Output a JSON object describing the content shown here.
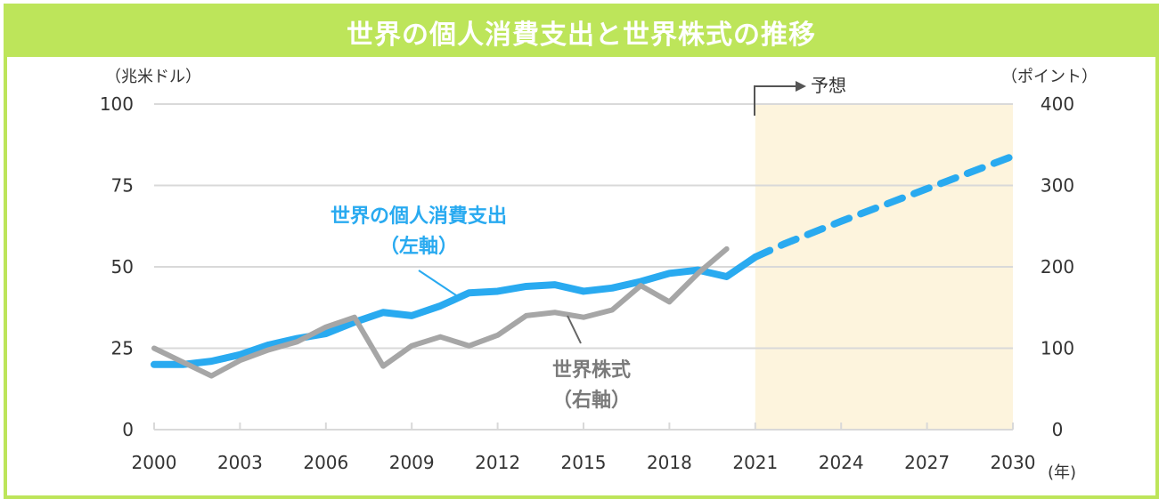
{
  "title": "世界の個人消費支出と世界株式の推移",
  "colors": {
    "frame": "#bde55a",
    "consumption": "#29aaf0",
    "stocks": "#a6a6a6",
    "forecast_bg": "#fdf4dd",
    "grid": "#d9d9d9"
  },
  "chart_data": {
    "type": "line",
    "title": "世界の個人消費支出と世界株式の推移",
    "xlabel": "(年)",
    "ylabel_left": "（兆米ドル）",
    "ylabel_right": "（ポイント）",
    "x_ticks": [
      "2000",
      "2003",
      "2006",
      "2009",
      "2012",
      "2015",
      "2018",
      "2021",
      "2024",
      "2027",
      "2030"
    ],
    "y_left_ticks": [
      "0",
      "25",
      "50",
      "75",
      "100"
    ],
    "y_right_ticks": [
      "0",
      "100",
      "200",
      "300",
      "400"
    ],
    "xlim": [
      2000,
      2030
    ],
    "ylim_left": [
      0,
      100
    ],
    "ylim_right": [
      0,
      400
    ],
    "grid": true,
    "forecast": {
      "label": "予想",
      "from": 2021,
      "to": 2030
    },
    "series": [
      {
        "name": "世界の個人消費支出",
        "axis_label": "（左軸）",
        "axis": "left",
        "x": [
          2000,
          2001,
          2002,
          2003,
          2004,
          2005,
          2006,
          2007,
          2008,
          2009,
          2010,
          2011,
          2012,
          2013,
          2014,
          2015,
          2016,
          2017,
          2018,
          2019,
          2020,
          2021
        ],
        "values": [
          20,
          20,
          21,
          23,
          26,
          28,
          29.5,
          33,
          36,
          35,
          38,
          42,
          42.5,
          44,
          44.5,
          42.5,
          43.5,
          45.5,
          48,
          49,
          47,
          53
        ]
      },
      {
        "name": "世界の個人消費支出（予想）",
        "axis": "left",
        "style": "dashed",
        "x": [
          2021,
          2022,
          2024,
          2027,
          2030
        ],
        "values": [
          53,
          57,
          64,
          74,
          84
        ]
      },
      {
        "name": "世界株式",
        "axis_label": "（右軸）",
        "axis": "right",
        "x": [
          2000,
          2001,
          2002,
          2003,
          2004,
          2005,
          2006,
          2007,
          2008,
          2009,
          2010,
          2011,
          2012,
          2013,
          2014,
          2015,
          2016,
          2017,
          2018,
          2019,
          2020
        ],
        "values": [
          100,
          83,
          66,
          85,
          98,
          108,
          126,
          138,
          78,
          103,
          114,
          103,
          116,
          140,
          144,
          138,
          147,
          177,
          157,
          192,
          222
        ]
      }
    ]
  }
}
